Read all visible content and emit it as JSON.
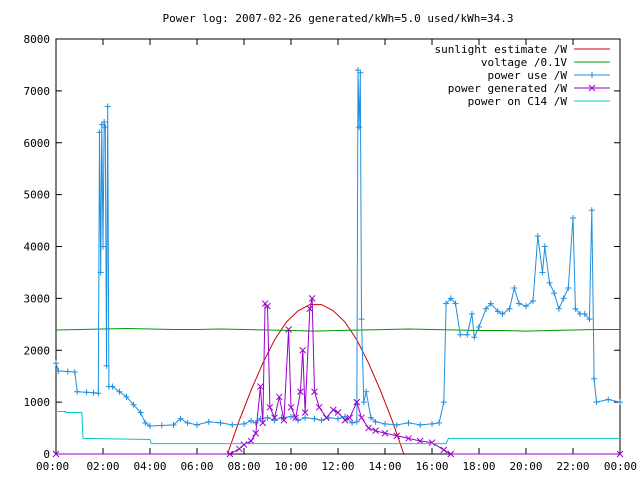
{
  "chart_data": {
    "type": "line",
    "title": "Power log: 2007-02-26 generated/kWh=5.0 used/kWh=34.3",
    "xlabel": "",
    "ylabel": "",
    "x_unit": "hours",
    "xlim": [
      0,
      24
    ],
    "ylim": [
      0,
      8000
    ],
    "grid": false,
    "legend_position": "top-right",
    "x_ticks": [
      0,
      2,
      4,
      6,
      8,
      10,
      12,
      14,
      16,
      18,
      20,
      22,
      24
    ],
    "x_tick_labels": [
      "00:00",
      "02:00",
      "04:00",
      "06:00",
      "08:00",
      "10:00",
      "12:00",
      "14:00",
      "16:00",
      "18:00",
      "20:00",
      "22:00",
      "00:00"
    ],
    "y_ticks": [
      0,
      1000,
      2000,
      3000,
      4000,
      5000,
      6000,
      7000,
      8000
    ],
    "y_tick_labels": [
      "0",
      "1000",
      "2000",
      "3000",
      "4000",
      "5000",
      "6000",
      "7000",
      "8000"
    ],
    "series": [
      {
        "name": "sunlight estimate /W",
        "color": "#cc0000",
        "marker": "none",
        "points": [
          [
            7.3,
            0
          ],
          [
            7.8,
            650
          ],
          [
            8.3,
            1230
          ],
          [
            8.8,
            1750
          ],
          [
            9.3,
            2200
          ],
          [
            9.8,
            2540
          ],
          [
            10.3,
            2760
          ],
          [
            10.8,
            2880
          ],
          [
            11.3,
            2880
          ],
          [
            11.8,
            2760
          ],
          [
            12.3,
            2540
          ],
          [
            12.8,
            2200
          ],
          [
            13.3,
            1750
          ],
          [
            13.8,
            1230
          ],
          [
            14.3,
            650
          ],
          [
            14.8,
            0
          ]
        ]
      },
      {
        "name": "voltage /0.1V",
        "color": "#009900",
        "marker": "none",
        "points": [
          [
            0,
            2390
          ],
          [
            1,
            2400
          ],
          [
            2,
            2410
          ],
          [
            3,
            2420
          ],
          [
            4,
            2410
          ],
          [
            5,
            2400
          ],
          [
            6,
            2400
          ],
          [
            7,
            2410
          ],
          [
            8,
            2400
          ],
          [
            9,
            2390
          ],
          [
            10,
            2380
          ],
          [
            11,
            2370
          ],
          [
            12,
            2380
          ],
          [
            13,
            2390
          ],
          [
            14,
            2400
          ],
          [
            15,
            2410
          ],
          [
            16,
            2400
          ],
          [
            17,
            2390
          ],
          [
            18,
            2380
          ],
          [
            19,
            2380
          ],
          [
            20,
            2370
          ],
          [
            21,
            2380
          ],
          [
            22,
            2390
          ],
          [
            23,
            2400
          ],
          [
            24,
            2400
          ]
        ]
      },
      {
        "name": "power use /W",
        "color": "#1f8fdf",
        "marker": "plus",
        "points": [
          [
            0,
            1750
          ],
          [
            0.1,
            1600
          ],
          [
            0.5,
            1590
          ],
          [
            0.8,
            1580
          ],
          [
            0.9,
            1200
          ],
          [
            1.3,
            1190
          ],
          [
            1.6,
            1180
          ],
          [
            1.8,
            1170
          ],
          [
            1.85,
            6200
          ],
          [
            1.9,
            3500
          ],
          [
            1.95,
            6350
          ],
          [
            2.0,
            4000
          ],
          [
            2.05,
            6400
          ],
          [
            2.1,
            6300
          ],
          [
            2.15,
            1700
          ],
          [
            2.2,
            6700
          ],
          [
            2.25,
            1300
          ],
          [
            2.4,
            1300
          ],
          [
            2.7,
            1200
          ],
          [
            3.0,
            1100
          ],
          [
            3.3,
            950
          ],
          [
            3.6,
            800
          ],
          [
            3.8,
            600
          ],
          [
            4.0,
            540
          ],
          [
            4.5,
            550
          ],
          [
            5.0,
            560
          ],
          [
            5.3,
            680
          ],
          [
            5.6,
            600
          ],
          [
            6.0,
            560
          ],
          [
            6.5,
            620
          ],
          [
            7.0,
            600
          ],
          [
            7.5,
            560
          ],
          [
            8.0,
            580
          ],
          [
            8.3,
            640
          ],
          [
            8.5,
            600
          ],
          [
            8.7,
            680
          ],
          [
            9.0,
            700
          ],
          [
            9.3,
            650
          ],
          [
            9.6,
            700
          ],
          [
            10.0,
            720
          ],
          [
            10.3,
            650
          ],
          [
            10.6,
            700
          ],
          [
            11.0,
            680
          ],
          [
            11.3,
            650
          ],
          [
            11.6,
            700
          ],
          [
            12.0,
            680
          ],
          [
            12.3,
            720
          ],
          [
            12.6,
            600
          ],
          [
            12.8,
            620
          ],
          [
            12.85,
            7400
          ],
          [
            12.9,
            6300
          ],
          [
            12.95,
            7350
          ],
          [
            13.0,
            2600
          ],
          [
            13.1,
            1000
          ],
          [
            13.2,
            1200
          ],
          [
            13.4,
            700
          ],
          [
            13.6,
            620
          ],
          [
            14.0,
            580
          ],
          [
            14.5,
            560
          ],
          [
            15.0,
            600
          ],
          [
            15.5,
            560
          ],
          [
            16.0,
            580
          ],
          [
            16.3,
            600
          ],
          [
            16.5,
            1000
          ],
          [
            16.6,
            2900
          ],
          [
            16.8,
            3000
          ],
          [
            17.0,
            2900
          ],
          [
            17.2,
            2300
          ],
          [
            17.5,
            2300
          ],
          [
            17.7,
            2700
          ],
          [
            17.8,
            2250
          ],
          [
            18.0,
            2450
          ],
          [
            18.3,
            2800
          ],
          [
            18.5,
            2900
          ],
          [
            18.8,
            2750
          ],
          [
            19.0,
            2700
          ],
          [
            19.3,
            2800
          ],
          [
            19.5,
            3200
          ],
          [
            19.7,
            2900
          ],
          [
            20.0,
            2850
          ],
          [
            20.3,
            2950
          ],
          [
            20.5,
            4200
          ],
          [
            20.7,
            3500
          ],
          [
            20.8,
            4000
          ],
          [
            21.0,
            3300
          ],
          [
            21.2,
            3100
          ],
          [
            21.4,
            2800
          ],
          [
            21.6,
            3000
          ],
          [
            21.8,
            3200
          ],
          [
            22.0,
            4550
          ],
          [
            22.1,
            2800
          ],
          [
            22.3,
            2700
          ],
          [
            22.5,
            2700
          ],
          [
            22.7,
            2600
          ],
          [
            22.8,
            4700
          ],
          [
            22.9,
            1450
          ],
          [
            23.0,
            1000
          ],
          [
            23.5,
            1050
          ],
          [
            24.0,
            1000
          ]
        ]
      },
      {
        "name": "power generated /W",
        "color": "#9900cc",
        "marker": "x",
        "points": [
          [
            0,
            0
          ],
          [
            7.4,
            0
          ],
          [
            7.8,
            100
          ],
          [
            8.0,
            180
          ],
          [
            8.3,
            250
          ],
          [
            8.5,
            400
          ],
          [
            8.7,
            1300
          ],
          [
            8.8,
            600
          ],
          [
            8.9,
            2900
          ],
          [
            9.0,
            2850
          ],
          [
            9.1,
            900
          ],
          [
            9.3,
            700
          ],
          [
            9.5,
            1100
          ],
          [
            9.7,
            650
          ],
          [
            9.9,
            2400
          ],
          [
            10.0,
            900
          ],
          [
            10.2,
            700
          ],
          [
            10.4,
            1200
          ],
          [
            10.5,
            2000
          ],
          [
            10.6,
            800
          ],
          [
            10.8,
            2800
          ],
          [
            10.9,
            3000
          ],
          [
            11.0,
            1200
          ],
          [
            11.2,
            900
          ],
          [
            11.5,
            700
          ],
          [
            11.8,
            850
          ],
          [
            12.0,
            800
          ],
          [
            12.3,
            650
          ],
          [
            12.5,
            700
          ],
          [
            12.8,
            1000
          ],
          [
            13.0,
            700
          ],
          [
            13.3,
            500
          ],
          [
            13.6,
            450
          ],
          [
            14.0,
            400
          ],
          [
            14.5,
            350
          ],
          [
            15.0,
            300
          ],
          [
            15.5,
            250
          ],
          [
            16.0,
            220
          ],
          [
            16.5,
            80
          ],
          [
            16.8,
            0
          ],
          [
            24,
            0
          ]
        ]
      },
      {
        "name": "power on C14 /W",
        "color": "#00cccc",
        "marker": "none",
        "points": [
          [
            0,
            820
          ],
          [
            0.4,
            820
          ],
          [
            0.4,
            800
          ],
          [
            1.1,
            800
          ],
          [
            1.15,
            300
          ],
          [
            4.0,
            280
          ],
          [
            4.05,
            200
          ],
          [
            12.0,
            200
          ],
          [
            16.6,
            200
          ],
          [
            16.7,
            300
          ],
          [
            24,
            300
          ]
        ]
      }
    ]
  }
}
